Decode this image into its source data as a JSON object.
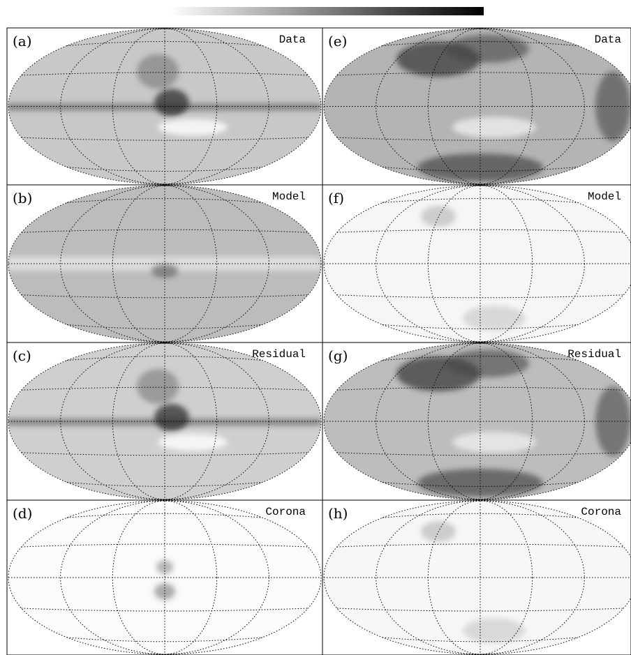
{
  "panels": [
    {
      "label": "(a)",
      "title": "Data"
    },
    {
      "label": "(b)",
      "title": "Model"
    },
    {
      "label": "(c)",
      "title": "Residual"
    },
    {
      "label": "(d)",
      "title": "Corona"
    },
    {
      "label": "(e)",
      "title": "Data"
    },
    {
      "label": "(f)",
      "title": "Model"
    },
    {
      "label": "(g)",
      "title": "Residual"
    },
    {
      "label": "(h)",
      "title": "Corona"
    }
  ]
}
